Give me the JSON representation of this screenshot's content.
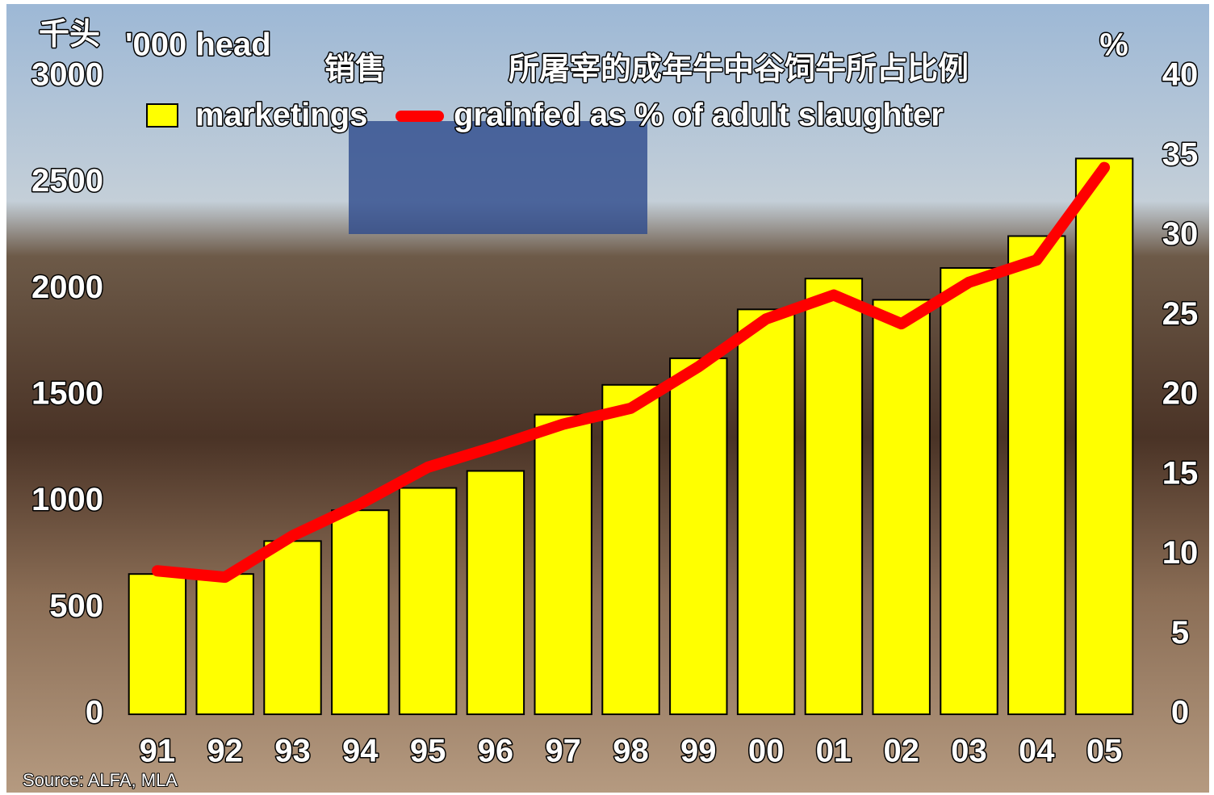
{
  "chart_data": {
    "type": "bar",
    "y_label_zh": "千头",
    "y_label": "'000 head",
    "y2_label": "%",
    "legend_zh": [
      "销售",
      "所屠宰的成年牛中谷饲牛所占比例"
    ],
    "source": "Source: ALFA, MLA",
    "categories": [
      "91",
      "92",
      "93",
      "94",
      "95",
      "96",
      "97",
      "98",
      "99",
      "00",
      "01",
      "02",
      "03",
      "04",
      "05"
    ],
    "series": [
      {
        "name": "marketings",
        "type": "bar",
        "color": "#ffff00",
        "values": [
          660,
          660,
          815,
          960,
          1065,
          1145,
          1410,
          1550,
          1675,
          1905,
          2050,
          1950,
          2100,
          2250,
          2615
        ]
      },
      {
        "name": "grainfed as % of adult slaughter",
        "type": "line",
        "axis": "y2",
        "color": "#ff0000",
        "values": [
          9.0,
          8.6,
          11.2,
          13.2,
          15.5,
          16.8,
          18.2,
          19.2,
          21.8,
          24.8,
          26.3,
          24.5,
          27.1,
          28.5,
          34.3
        ]
      }
    ],
    "ylim": [
      0,
      3000
    ],
    "yticks": [
      0,
      500,
      1000,
      1500,
      2000,
      2500,
      3000
    ],
    "y2lim": [
      0,
      40
    ],
    "y2ticks": [
      0,
      5,
      10,
      15,
      20,
      25,
      30,
      35,
      40
    ],
    "legend": "top"
  }
}
